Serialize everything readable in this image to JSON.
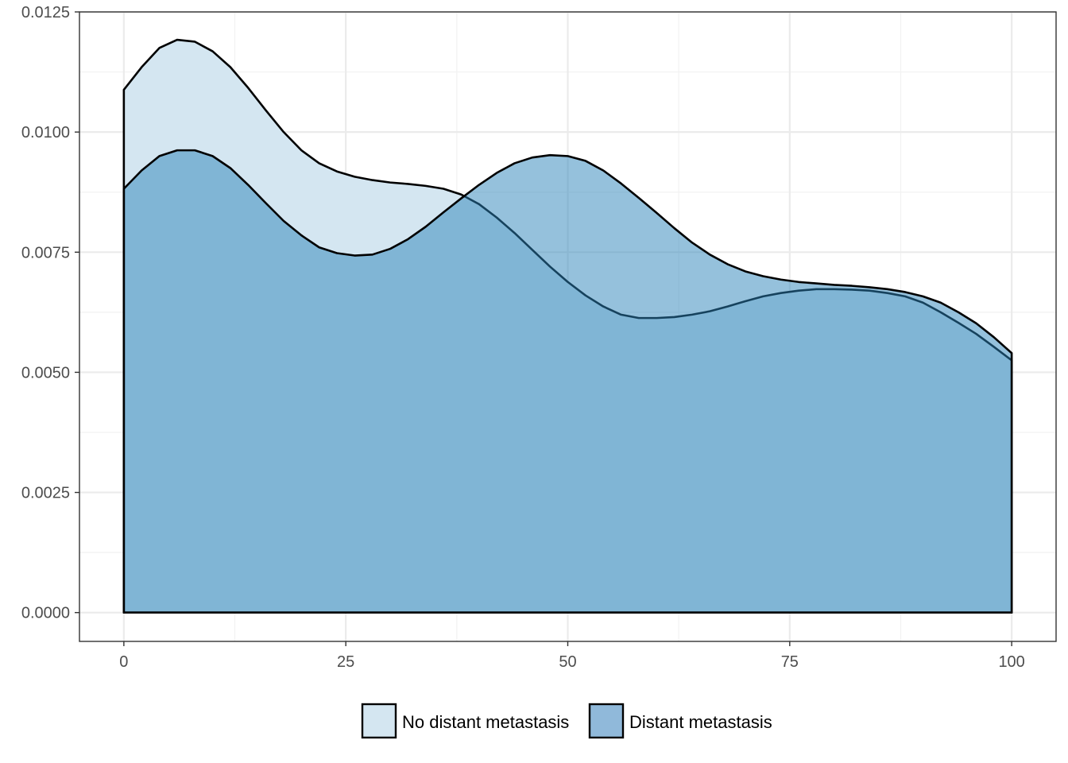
{
  "chart_data": {
    "type": "area",
    "x_ticks": [
      "0",
      "25",
      "50",
      "75",
      "100"
    ],
    "y_ticks": [
      "0.0000",
      "0.0025",
      "0.0050",
      "0.0075",
      "0.0100",
      "0.0125"
    ],
    "xlim": [
      -5,
      105
    ],
    "ylim": [
      -0.0006,
      0.0125
    ],
    "grid": true,
    "legend_position": "bottom",
    "series": [
      {
        "name": "No distant metastasis",
        "fill": "#d4e6f1",
        "x": [
          0,
          2,
          4,
          6,
          8,
          10,
          12,
          14,
          16,
          18,
          20,
          22,
          24,
          26,
          28,
          30,
          32,
          34,
          36,
          38,
          40,
          42,
          44,
          46,
          48,
          50,
          52,
          54,
          56,
          58,
          60,
          62,
          64,
          66,
          68,
          70,
          72,
          74,
          76,
          78,
          80,
          82,
          84,
          86,
          88,
          90,
          92,
          94,
          96,
          98,
          100
        ],
        "y": [
          0.01088,
          0.01135,
          0.01175,
          0.01192,
          0.01188,
          0.01168,
          0.01135,
          0.01092,
          0.01045,
          0.01,
          0.00962,
          0.00935,
          0.00918,
          0.00907,
          0.009,
          0.00895,
          0.00892,
          0.00888,
          0.00882,
          0.0087,
          0.0085,
          0.00822,
          0.0079,
          0.00755,
          0.0072,
          0.00688,
          0.0066,
          0.00637,
          0.0062,
          0.00613,
          0.00613,
          0.00615,
          0.0062,
          0.00627,
          0.00637,
          0.00648,
          0.00658,
          0.00665,
          0.0067,
          0.00673,
          0.00673,
          0.00672,
          0.0067,
          0.00665,
          0.00658,
          0.00645,
          0.00625,
          0.00603,
          0.0058,
          0.00553,
          0.00525
        ]
      },
      {
        "name": "Distant metastasis",
        "fill": "#2b83ba",
        "fill_opacity": 0.5,
        "x": [
          0,
          2,
          4,
          6,
          8,
          10,
          12,
          14,
          16,
          18,
          20,
          22,
          24,
          26,
          28,
          30,
          32,
          34,
          36,
          38,
          40,
          42,
          44,
          46,
          48,
          50,
          52,
          54,
          56,
          58,
          60,
          62,
          64,
          66,
          68,
          70,
          72,
          74,
          76,
          78,
          80,
          82,
          84,
          86,
          88,
          90,
          92,
          94,
          96,
          98,
          100
        ],
        "y": [
          0.00882,
          0.0092,
          0.0095,
          0.00962,
          0.00962,
          0.0095,
          0.00925,
          0.0089,
          0.00852,
          0.00815,
          0.00785,
          0.0076,
          0.00748,
          0.00743,
          0.00745,
          0.00757,
          0.00777,
          0.00803,
          0.00833,
          0.00862,
          0.0089,
          0.00915,
          0.00935,
          0.00947,
          0.00952,
          0.0095,
          0.0094,
          0.0092,
          0.00893,
          0.00863,
          0.00832,
          0.008,
          0.0077,
          0.00745,
          0.00725,
          0.0071,
          0.007,
          0.00693,
          0.00688,
          0.00685,
          0.00682,
          0.0068,
          0.00677,
          0.00673,
          0.00667,
          0.00658,
          0.00645,
          0.00625,
          0.00602,
          0.00573,
          0.0054
        ]
      }
    ]
  }
}
